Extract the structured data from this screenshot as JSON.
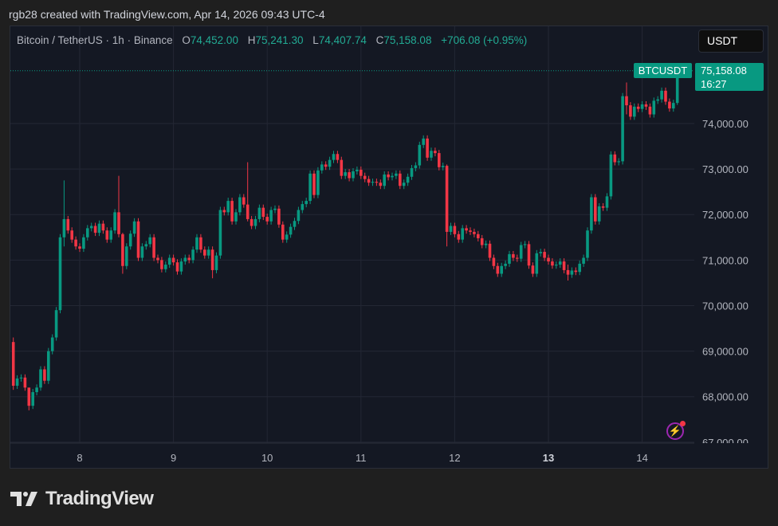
{
  "credit": "rgb28 created with TradingView.com, Apr 14, 2026 09:43 UTC-4",
  "legend": {
    "symbol": "Bitcoin / TetherUS · 1h · Binance",
    "o_label": "O",
    "o": "74,452.00",
    "h_label": "H",
    "h": "75,241.30",
    "l_label": "L",
    "l": "74,407.74",
    "c_label": "C",
    "c": "75,158.08",
    "change": "+706.08 (+0.95%)"
  },
  "currency_button": "USDT",
  "symbol_tag": "BTCUSDT",
  "last_price": "75,158.08",
  "countdown": "16:27",
  "logo_text": "TradingView",
  "colors": {
    "up": "#089981",
    "down": "#f23645",
    "background": "#141823",
    "grid": "#232734",
    "text": "#b2b5be"
  },
  "icons": {
    "alert": "lightning-bolt-icon",
    "logo": "tradingview-logo-icon"
  },
  "chart_data": {
    "type": "candlestick",
    "title": "Bitcoin / TetherUS · 1h · Binance",
    "interval": "1h",
    "ylim": [
      66980,
      76135
    ],
    "y_ticks": [
      67000,
      68000,
      69000,
      70000,
      71000,
      72000,
      73000,
      74000
    ],
    "y_tick_labels": [
      "67,000.00",
      "68,000.00",
      "69,000.00",
      "70,000.00",
      "71,000.00",
      "72,000.00",
      "73,000.00",
      "74,000.00"
    ],
    "x_ticks": [
      {
        "label": "8",
        "candle": 17
      },
      {
        "label": "9",
        "candle": 41
      },
      {
        "label": "10",
        "candle": 65
      },
      {
        "label": "11",
        "candle": 89
      },
      {
        "label": "12",
        "candle": 113
      },
      {
        "label": "13",
        "candle": 137,
        "bold": true
      },
      {
        "label": "14",
        "candle": 161
      }
    ],
    "grid": true,
    "last_price": 75158.08,
    "first_open": 69200,
    "closes": [
      68240,
      68400,
      68420,
      68200,
      67800,
      68100,
      68200,
      68600,
      68350,
      69000,
      69300,
      69900,
      71500,
      71900,
      71650,
      71450,
      71300,
      71250,
      71500,
      71700,
      71750,
      71600,
      71800,
      71650,
      71450,
      71650,
      72050,
      71570,
      70870,
      71300,
      71580,
      71850,
      71050,
      71300,
      71350,
      71500,
      71050,
      71000,
      70800,
      70900,
      71050,
      70950,
      70750,
      70970,
      71050,
      71000,
      71230,
      71500,
      71230,
      71100,
      71230,
      70780,
      71100,
      72100,
      72050,
      72300,
      71850,
      72050,
      72380,
      72220,
      71900,
      71750,
      71900,
      72150,
      71950,
      71850,
      72100,
      72130,
      71780,
      71450,
      71560,
      71730,
      71860,
      72100,
      72230,
      72300,
      72900,
      72430,
      72970,
      73100,
      73050,
      73200,
      73330,
      73200,
      72850,
      72930,
      72800,
      72950,
      72985,
      72850,
      72780,
      72700,
      72720,
      72700,
      72630,
      72880,
      72820,
      72850,
      72900,
      72630,
      72700,
      72830,
      73020,
      73080,
      73530,
      73670,
      73250,
      73400,
      73350,
      73040,
      73070,
      71620,
      71750,
      71570,
      71450,
      71700,
      71650,
      71620,
      71570,
      71480,
      71330,
      71360,
      71050,
      70870,
      70700,
      70870,
      70920,
      71130,
      71050,
      71030,
      71330,
      71350,
      70880,
      70700,
      71150,
      71180,
      71050,
      70970,
      70880,
      70900,
      70970,
      70780,
      70680,
      70770,
      70740,
      70920,
      71050,
      71650,
      72380,
      71850,
      72180,
      72150,
      72400,
      73320,
      73150,
      73170,
      74600,
      74400,
      74150,
      74370,
      74320,
      74420,
      74370,
      74200,
      74500,
      74530,
      74720,
      74480,
      74330,
      74452,
      75158.08
    ],
    "wick_extremes": {
      "0": [
        69300,
        68150
      ],
      "4": [
        68000,
        67700
      ],
      "13": [
        72750,
        71300
      ],
      "27": [
        72850,
        71500
      ],
      "28": [
        71600,
        70700
      ],
      "51": [
        71300,
        70600
      ],
      "60": [
        73150,
        71850
      ],
      "111": [
        73100,
        71300
      ],
      "142": [
        70900,
        70550
      ],
      "157": [
        74900,
        74200
      ],
      "170": [
        75241.3,
        74407.74
      ]
    }
  }
}
